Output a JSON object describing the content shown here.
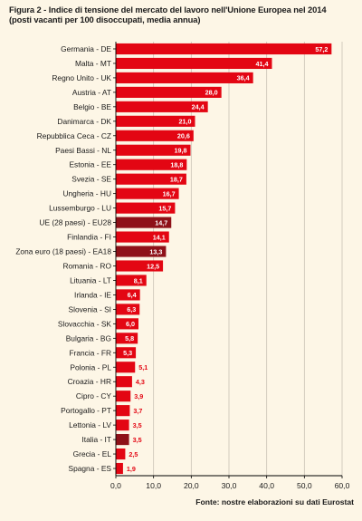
{
  "chart_data": {
    "type": "bar",
    "orientation": "horizontal",
    "title": "Figura 2 - Indice di tensione del mercato del lavoro nell'Unione Europea nel 2014",
    "subtitle": "(posti vacanti per 100 disoccupati, media annua)",
    "source": "Fonte: nostre elaborazioni su dati Eurostat",
    "categories": [
      "Germania - DE",
      "Malta - MT",
      "Regno Unito - UK",
      "Austria - AT",
      "Belgio - BE",
      "Danimarca - DK",
      "Repubblica Ceca - CZ",
      "Paesi Bassi - NL",
      "Estonia - EE",
      "Svezia - SE",
      "Ungheria - HU",
      "Lussemburgo - LU",
      "UE (28 paesi) - EU28",
      "Finlandia - FI",
      "Zona euro (18 paesi) - EA18",
      "Romania - RO",
      "Lituania - LT",
      "Irlanda - IE",
      "Slovenia - SI",
      "Slovacchia - SK",
      "Bulgaria - BG",
      "Francia - FR",
      "Polonia - PL",
      "Croazia - HR",
      "Cipro - CY",
      "Portogallo - PT",
      "Lettonia - LV",
      "Italia - IT",
      "Grecia - EL",
      "Spagna - ES"
    ],
    "values": [
      57.2,
      41.4,
      36.4,
      28.0,
      24.4,
      21.0,
      20.6,
      19.8,
      18.8,
      18.7,
      16.7,
      15.7,
      14.7,
      14.1,
      13.3,
      12.5,
      8.1,
      6.4,
      6.3,
      6.0,
      5.8,
      5.3,
      5.1,
      4.3,
      3.9,
      3.7,
      3.5,
      3.5,
      2.5,
      1.9
    ],
    "value_labels": [
      "57,2",
      "41,4",
      "36,4",
      "28,0",
      "24,4",
      "21,0",
      "20,6",
      "19,8",
      "18,8",
      "18,7",
      "16,7",
      "15,7",
      "14,7",
      "14,1",
      "13,3",
      "12,5",
      "8,1",
      "6,4",
      "6,3",
      "6,0",
      "5,8",
      "5,3",
      "5,1",
      "4,3",
      "3,9",
      "3,7",
      "3,5",
      "3,5",
      "2,5",
      "1,9"
    ],
    "highlight": [
      "UE (28 paesi) - EU28",
      "Zona euro (18 paesi) - EA18",
      "Italia - IT"
    ],
    "xlim": [
      0,
      60
    ],
    "xticks": [
      0,
      10,
      20,
      30,
      40,
      50,
      60
    ],
    "xtick_labels": [
      "0,0",
      "10,0",
      "20,0",
      "30,0",
      "40,0",
      "50,0",
      "60,0"
    ],
    "xlabel": "",
    "ylabel": "",
    "grid": true,
    "legend": "none",
    "colors": {
      "bar": "#e30613",
      "bar_highlight": "#8e1118",
      "background": "#fdf6e6",
      "grid": "#c9c2b4",
      "axis": "#000000",
      "label_outside": "#e30613",
      "label_inside": "#ffffff"
    }
  }
}
